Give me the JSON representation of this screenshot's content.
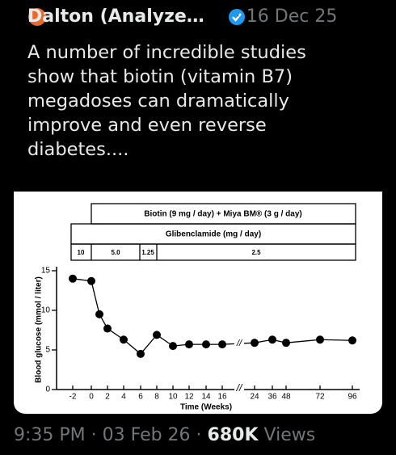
{
  "tweet": {
    "author": "Dalton (Analyze…",
    "date": "· 16 Dec 25",
    "text_lines": [
      "A number of incredible studies",
      "show that biotin (vitamin B7)",
      "megadoses can dramatically",
      "improve and even reverse",
      "diabetes...."
    ],
    "time": "9:35 PM · 03 Feb 26 ·",
    "views_count": "680K",
    "views_label": "Views"
  },
  "chart_data": {
    "type": "line",
    "treatment": "Biotin (9 mg / day) + Miya BM® (3 g / day)",
    "dose_title": "Glibenclamide (mg / day)",
    "doses": [
      "10",
      "5.0",
      "1.25",
      "2.5"
    ],
    "y_label": "Blood glucose (mmol / liter)",
    "x_label": "Time (Weeks)",
    "x": [
      -2,
      0,
      1,
      2,
      4,
      6,
      8,
      10,
      12,
      14,
      16,
      24,
      36,
      48,
      72,
      96
    ],
    "values": [
      14.0,
      13.7,
      9.5,
      7.7,
      6.3,
      4.5,
      6.9,
      5.5,
      5.7,
      5.7,
      5.7,
      5.9,
      6.3,
      5.9,
      6.3,
      6.2
    ],
    "color": "#000000",
    "ylim": [
      0,
      15
    ],
    "yticks": [
      0,
      5,
      10,
      15
    ],
    "xticks": [
      -2,
      0,
      2,
      4,
      6,
      8,
      10,
      12,
      14,
      16,
      24,
      36,
      48,
      72,
      96
    ]
  }
}
